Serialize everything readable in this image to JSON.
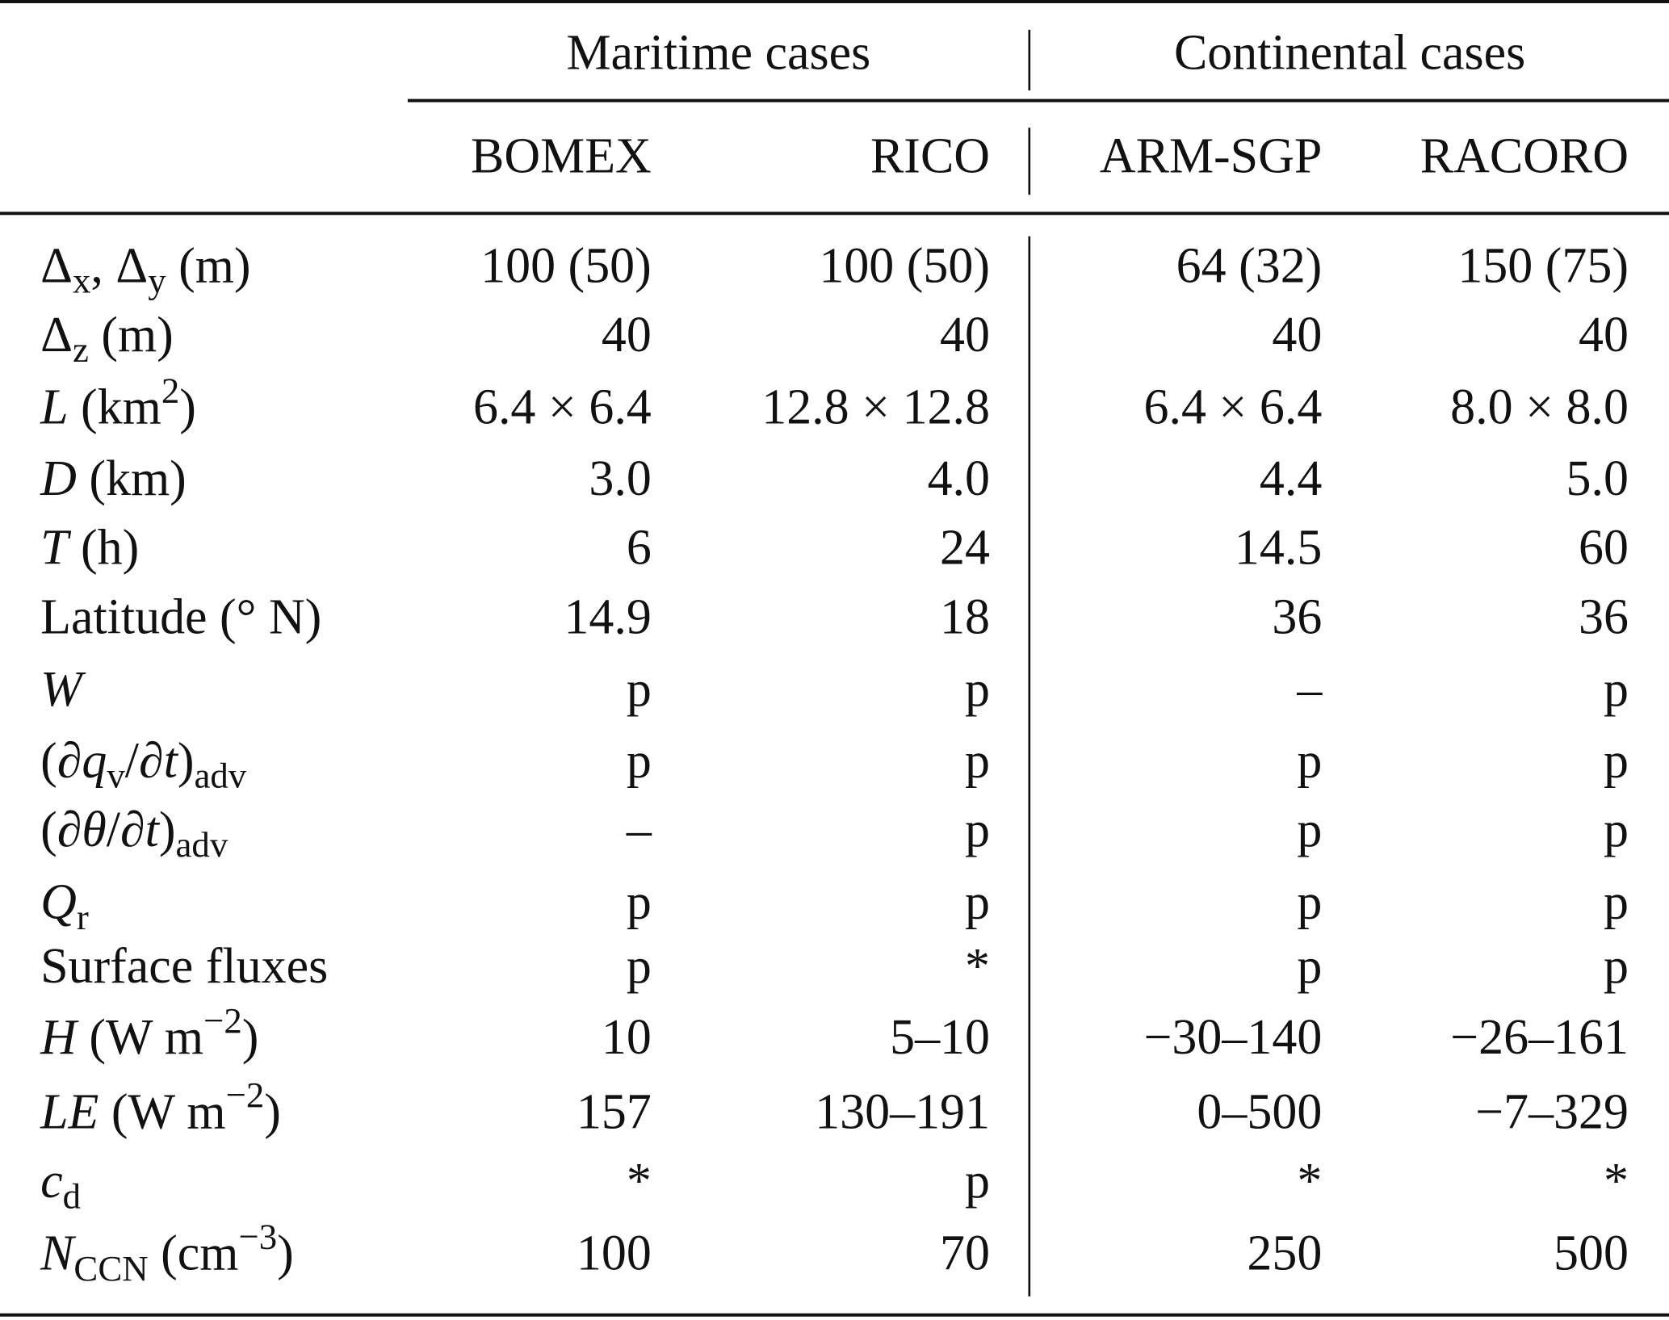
{
  "header": {
    "groups": [
      "Maritime cases",
      "Continental cases"
    ],
    "columns": [
      "BOMEX",
      "RICO",
      "ARM-SGP",
      "RACORO"
    ]
  },
  "rows": [
    {
      "label": [
        [
          "Δ",
          "n"
        ],
        [
          "x",
          "sub"
        ],
        [
          ", Δ",
          "n"
        ],
        [
          "y",
          "sub"
        ],
        [
          " (m)",
          "n"
        ]
      ],
      "values": [
        "100 (50)",
        "100 (50)",
        "64 (32)",
        "150 (75)"
      ]
    },
    {
      "label": [
        [
          "Δ",
          "n"
        ],
        [
          "z",
          "sub"
        ],
        [
          " (m)",
          "n"
        ]
      ],
      "values": [
        "40",
        "40",
        "40",
        "40"
      ]
    },
    {
      "label": [
        [
          "L",
          "i"
        ],
        [
          " (km",
          "n"
        ],
        [
          "2",
          "sup"
        ],
        [
          ")",
          "n"
        ]
      ],
      "values": [
        "6.4 × 6.4",
        "12.8 × 12.8",
        "6.4 × 6.4",
        "8.0 × 8.0"
      ]
    },
    {
      "label": [
        [
          "D",
          "i"
        ],
        [
          " (km)",
          "n"
        ]
      ],
      "values": [
        "3.0",
        "4.0",
        "4.4",
        "5.0"
      ]
    },
    {
      "label": [
        [
          "T",
          "i"
        ],
        [
          " (h)",
          "n"
        ]
      ],
      "values": [
        "6",
        "24",
        "14.5",
        "60"
      ]
    },
    {
      "label": [
        [
          "Latitude (° N)",
          "n"
        ]
      ],
      "values": [
        "14.9",
        "18",
        "36",
        "36"
      ]
    },
    {
      "label": [
        [
          "W",
          "i"
        ]
      ],
      "values": [
        "p",
        "p",
        "–",
        "p"
      ]
    },
    {
      "label": [
        [
          "(∂",
          "n"
        ],
        [
          "q",
          "i"
        ],
        [
          "v",
          "sub"
        ],
        [
          "/∂",
          "n"
        ],
        [
          "t",
          "i"
        ],
        [
          ")",
          "n"
        ],
        [
          "adv",
          "sub"
        ]
      ],
      "values": [
        "p",
        "p",
        "p",
        "p"
      ]
    },
    {
      "label": [
        [
          "(∂",
          "n"
        ],
        [
          "θ",
          "i"
        ],
        [
          "/∂",
          "n"
        ],
        [
          "t",
          "i"
        ],
        [
          ")",
          "n"
        ],
        [
          "adv",
          "sub"
        ]
      ],
      "values": [
        "–",
        "p",
        "p",
        "p"
      ]
    },
    {
      "label": [
        [
          "Q",
          "i"
        ],
        [
          "r",
          "sub"
        ]
      ],
      "values": [
        "p",
        "p",
        "p",
        "p"
      ]
    },
    {
      "label": [
        [
          "Surface fluxes",
          "n"
        ]
      ],
      "values": [
        "p",
        "*",
        "p",
        "p"
      ]
    },
    {
      "label": [
        [
          "H",
          "i"
        ],
        [
          " (W m",
          "n"
        ],
        [
          "−2",
          "sup"
        ],
        [
          ")",
          "n"
        ]
      ],
      "values": [
        "10",
        "5–10",
        "−30–140",
        "−26–161"
      ]
    },
    {
      "label": [
        [
          "LE",
          "i"
        ],
        [
          " (W m",
          "n"
        ],
        [
          "−2",
          "sup"
        ],
        [
          ")",
          "n"
        ]
      ],
      "values": [
        "157",
        "130–191",
        "0–500",
        "−7–329"
      ]
    },
    {
      "label": [
        [
          "c",
          "i"
        ],
        [
          "d",
          "sub"
        ]
      ],
      "values": [
        "*",
        "p",
        "*",
        "*"
      ]
    },
    {
      "label": [
        [
          "N",
          "i"
        ],
        [
          "CCN",
          "sub"
        ],
        [
          " (cm",
          "n"
        ],
        [
          "−3",
          "sup"
        ],
        [
          ")",
          "n"
        ]
      ],
      "values": [
        "100",
        "70",
        "250",
        "500"
      ]
    }
  ]
}
